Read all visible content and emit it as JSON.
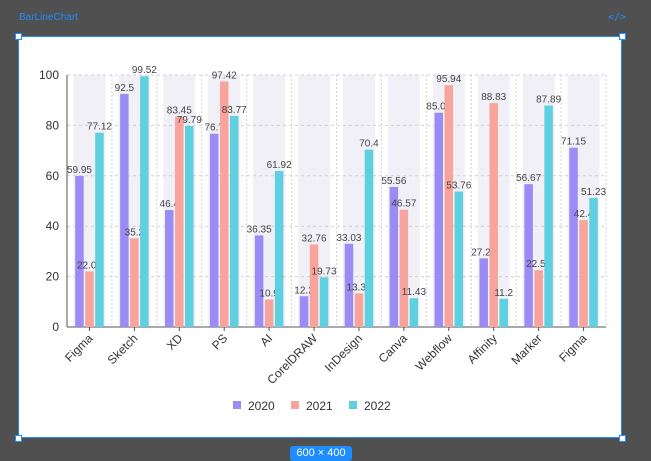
{
  "editor": {
    "frame_label": "BarLineChart",
    "code_icon": "</>",
    "size_label": "600 × 400",
    "accent_color": "#1e8cff"
  },
  "chart_data": {
    "type": "bar",
    "categories": [
      "Figma",
      "Sketch",
      "XD",
      "PS",
      "AI",
      "CorelDRAW",
      "InDesign",
      "Canva",
      "Webflow",
      "Affinity",
      "Marker",
      "Figma"
    ],
    "series": [
      {
        "name": "2020",
        "color": "#9b8bf4",
        "values": [
          59.95,
          92.5,
          46.4,
          76.7,
          36.35,
          12.2,
          33.03,
          55.56,
          85.02,
          27.25,
          56.67,
          71.15
        ]
      },
      {
        "name": "2021",
        "color": "#f8a39b",
        "values": [
          22.07,
          35.2,
          83.45,
          97.42,
          10.9,
          32.76,
          13.36,
          46.57,
          95.94,
          88.83,
          22.54,
          42.4
        ]
      },
      {
        "name": "2022",
        "color": "#5fd0e0",
        "values": [
          77.12,
          99.52,
          79.79,
          83.77,
          61.92,
          19.73,
          70.4,
          11.43,
          53.76,
          11.2,
          87.89,
          51.23
        ]
      }
    ],
    "ylim": [
      0,
      100
    ],
    "yticks": [
      0,
      20,
      40,
      60,
      80,
      100
    ],
    "grid": true,
    "legend_position": "bottom"
  }
}
